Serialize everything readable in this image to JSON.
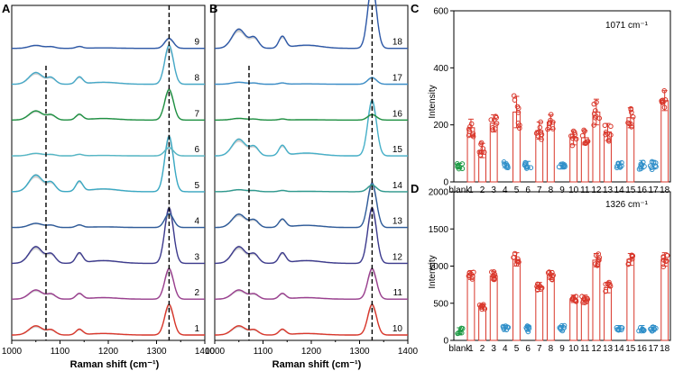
{
  "figure": {
    "panels": [
      {
        "id": "A",
        "letter": "A"
      },
      {
        "id": "B",
        "letter": "B"
      },
      {
        "id": "C",
        "letter": "C"
      },
      {
        "id": "D",
        "letter": "D"
      }
    ]
  },
  "chart_data": [
    {
      "panel": "A",
      "type": "line",
      "title": "",
      "xlabel": "Raman shift (cm⁻¹)",
      "ylabel": "",
      "xlim": [
        1000,
        1400
      ],
      "x_ticks": [
        "1000",
        "1100",
        "1200",
        "1300",
        "1400"
      ],
      "dashed_lines_at": [
        1071,
        1326
      ],
      "series": [
        {
          "name": "1",
          "label": "1",
          "color": "#d9372b",
          "scale": 0.55
        },
        {
          "name": "2",
          "label": "2",
          "color": "#9a3f8f",
          "scale": 0.55
        },
        {
          "name": "3",
          "label": "3",
          "color": "#3d3b8e",
          "scale": 1.0
        },
        {
          "name": "4",
          "label": "4",
          "color": "#2e5b9a",
          "scale": 0.25
        },
        {
          "name": "5",
          "label": "5",
          "color": "#3aa9c4",
          "scale": 1.0
        },
        {
          "name": "6",
          "label": "6",
          "color": "#54b7c6",
          "scale": 0.15
        },
        {
          "name": "7",
          "label": "7",
          "color": "#1e9142",
          "scale": 0.55
        },
        {
          "name": "8",
          "label": "8",
          "color": "#46a9c8",
          "scale": 0.7
        },
        {
          "name": "9",
          "label": "9",
          "color": "#2e59a8",
          "scale": 0.18
        }
      ]
    },
    {
      "panel": "B",
      "type": "line",
      "title": "",
      "xlabel": "Raman shift (cm⁻¹)",
      "ylabel": "",
      "xlim": [
        1000,
        1400
      ],
      "x_ticks": [
        "1000",
        "1100",
        "1200",
        "1300",
        "1400"
      ],
      "dashed_lines_at": [
        1071,
        1326
      ],
      "series": [
        {
          "name": "10",
          "label": "10",
          "color": "#d9372b",
          "scale": 0.55
        },
        {
          "name": "11",
          "label": "11",
          "color": "#9a3f8f",
          "scale": 0.55
        },
        {
          "name": "12",
          "label": "12",
          "color": "#3d3b8e",
          "scale": 1.0
        },
        {
          "name": "13",
          "label": "13",
          "color": "#2e5b9a",
          "scale": 0.8
        },
        {
          "name": "14",
          "label": "14",
          "color": "#2f9a8f",
          "scale": 0.12
        },
        {
          "name": "15",
          "label": "15",
          "color": "#46b0c9",
          "scale": 1.0
        },
        {
          "name": "16",
          "label": "16",
          "color": "#1e9142",
          "scale": 0.1
        },
        {
          "name": "17",
          "label": "17",
          "color": "#3d8fc9",
          "scale": 0.12
        },
        {
          "name": "18",
          "label": "18",
          "color": "#2e59a8",
          "scale": 1.15
        }
      ]
    },
    {
      "panel": "C",
      "type": "bar",
      "annotation": "1071 cm⁻¹",
      "title": "",
      "xlabel": "",
      "ylabel": "Intensity",
      "ylim": [
        0,
        600
      ],
      "y_ticks": [
        "0",
        "200",
        "400",
        "600"
      ],
      "categories": [
        "blank",
        "1",
        "2",
        "3",
        "4",
        "5",
        "6",
        "7",
        "8",
        "9",
        "10",
        "11",
        "12",
        "13",
        "14",
        "15",
        "16",
        "17",
        "18"
      ],
      "values": [
        55,
        190,
        110,
        205,
        60,
        245,
        60,
        180,
        210,
        55,
        155,
        155,
        245,
        175,
        60,
        225,
        60,
        60,
        285
      ],
      "errors": [
        10,
        30,
        25,
        30,
        10,
        55,
        12,
        30,
        25,
        10,
        25,
        25,
        45,
        30,
        10,
        35,
        15,
        15,
        35
      ],
      "bar_types": [
        "none",
        "bar",
        "bar",
        "bar",
        "none",
        "bar",
        "none",
        "bar",
        "bar",
        "none",
        "bar",
        "bar",
        "bar",
        "bar",
        "none",
        "bar",
        "none",
        "none",
        "bar"
      ],
      "dot_colors": [
        "#1f9a45",
        "#d9372b",
        "#d9372b",
        "#d9372b",
        "#2f8fc9",
        "#d9372b",
        "#2f8fc9",
        "#d9372b",
        "#d9372b",
        "#2f8fc9",
        "#d9372b",
        "#d9372b",
        "#d9372b",
        "#d9372b",
        "#2f8fc9",
        "#d9372b",
        "#2f8fc9",
        "#2f8fc9",
        "#d9372b"
      ]
    },
    {
      "panel": "D",
      "type": "bar",
      "annotation": "1326 cm⁻¹",
      "title": "",
      "xlabel": "",
      "ylabel": "Intensity",
      "ylim": [
        0,
        2000
      ],
      "y_ticks": [
        "0",
        "500",
        "1000",
        "1500",
        "2000"
      ],
      "categories": [
        "blank",
        "1",
        "2",
        "3",
        "4",
        "5",
        "6",
        "7",
        "8",
        "9",
        "10",
        "11",
        "12",
        "13",
        "14",
        "15",
        "16",
        "17",
        "18"
      ],
      "values": [
        130,
        880,
        450,
        870,
        160,
        1090,
        160,
        720,
        880,
        160,
        560,
        560,
        1080,
        710,
        160,
        1090,
        160,
        160,
        1090
      ],
      "errors": [
        40,
        60,
        30,
        60,
        40,
        90,
        40,
        60,
        60,
        40,
        50,
        50,
        90,
        70,
        40,
        80,
        40,
        40,
        90
      ],
      "bar_types": [
        "none",
        "bar",
        "bar",
        "bar",
        "none",
        "bar",
        "none",
        "bar",
        "bar",
        "none",
        "bar",
        "bar",
        "bar",
        "bar",
        "none",
        "bar",
        "none",
        "none",
        "bar"
      ],
      "dot_colors": [
        "#1f9a45",
        "#d9372b",
        "#d9372b",
        "#d9372b",
        "#2f8fc9",
        "#d9372b",
        "#2f8fc9",
        "#d9372b",
        "#d9372b",
        "#2f8fc9",
        "#d9372b",
        "#d9372b",
        "#d9372b",
        "#d9372b",
        "#2f8fc9",
        "#d9372b",
        "#2f8fc9",
        "#2f8fc9",
        "#d9372b"
      ]
    }
  ]
}
